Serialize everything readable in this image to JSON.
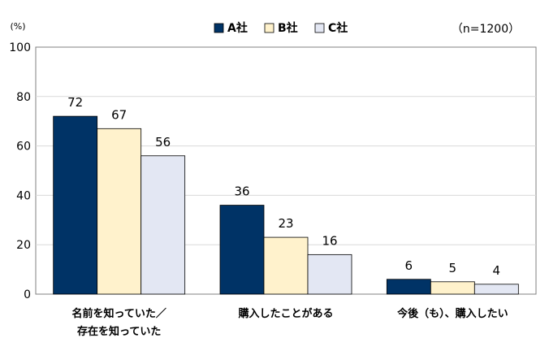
{
  "chart_data": {
    "type": "bar",
    "unit_label": "(%)",
    "sample_note": "（n=1200）",
    "categories": [
      [
        "名前を知っていた／",
        "存在を知っていた"
      ],
      [
        "購入したことがある"
      ],
      [
        "今後（も）、購入したい"
      ]
    ],
    "series": [
      {
        "name": "A社",
        "values": [
          72,
          36,
          6
        ],
        "color": "#003366"
      },
      {
        "name": "B社",
        "values": [
          67,
          23,
          5
        ],
        "color": "#FFF2CC"
      },
      {
        "name": "C社",
        "values": [
          56,
          16,
          4
        ],
        "color": "#E3E7F3"
      }
    ],
    "ylim": [
      0,
      100
    ],
    "yticks": [
      0,
      20,
      40,
      60,
      80,
      100
    ],
    "grid": true,
    "legend_position": "top-center"
  }
}
